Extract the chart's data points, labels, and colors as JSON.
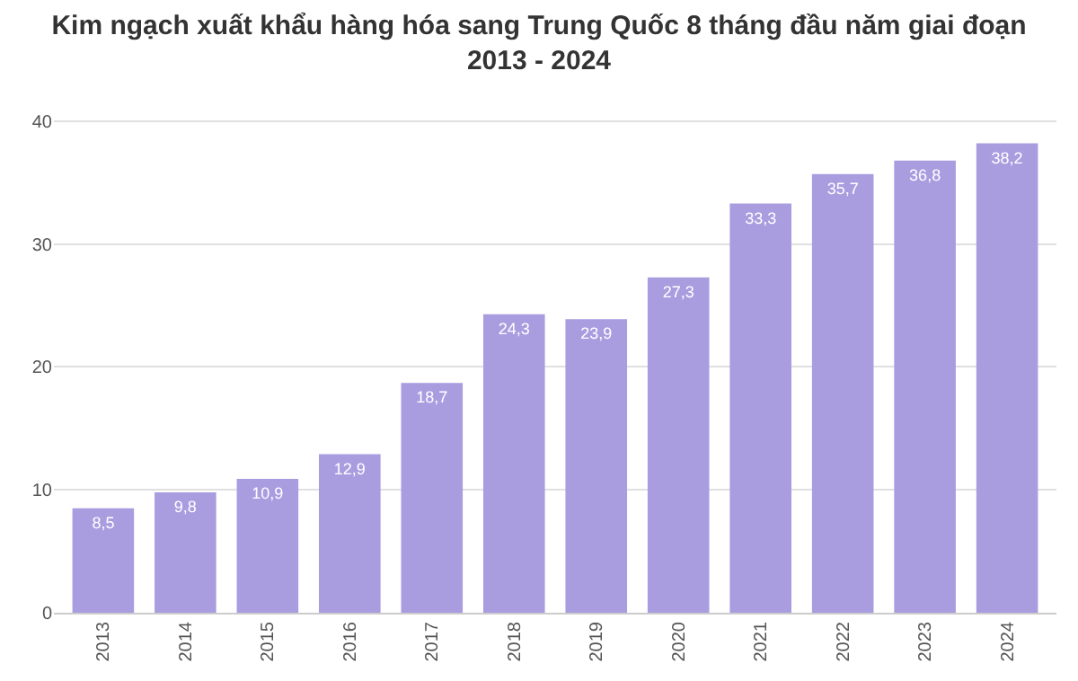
{
  "chart_data": {
    "type": "bar",
    "title": "Kim ngạch xuất khẩu hàng hóa sang Trung Quốc 8 tháng đầu năm giai đoạn 2013 - 2024",
    "categories": [
      "2013",
      "2014",
      "2015",
      "2016",
      "2017",
      "2018",
      "2019",
      "2020",
      "2021",
      "2022",
      "2023",
      "2024"
    ],
    "values": [
      8.5,
      9.8,
      10.9,
      12.9,
      18.7,
      24.3,
      23.9,
      27.3,
      33.3,
      35.7,
      36.8,
      38.2
    ],
    "value_labels": [
      "8,5",
      "9,8",
      "10,9",
      "12,9",
      "18,7",
      "24,3",
      "23,9",
      "27,3",
      "33,3",
      "35,7",
      "36,8",
      "38,2"
    ],
    "color": "#a99de0",
    "ylim": [
      0,
      40
    ],
    "yticks": [
      0,
      10,
      20,
      30,
      40
    ],
    "grid": "y",
    "legend": false
  }
}
